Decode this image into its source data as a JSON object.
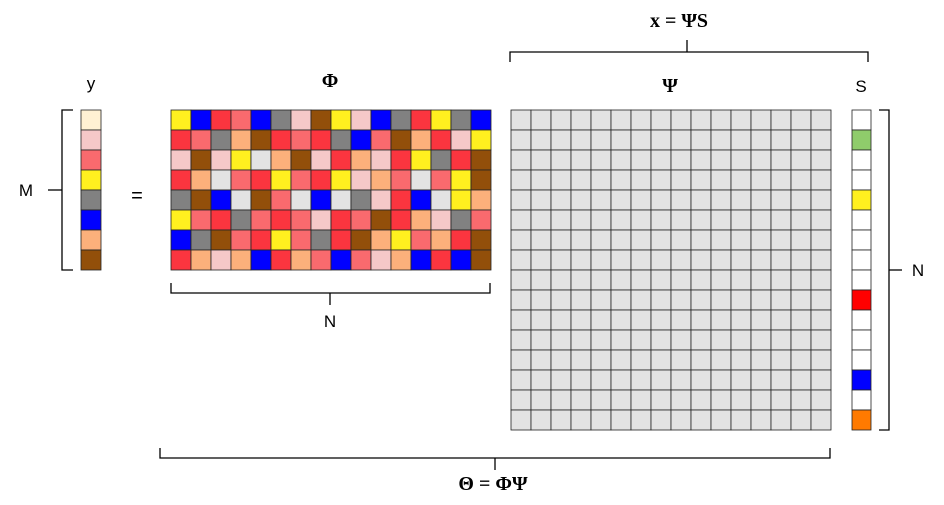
{
  "labels": {
    "y": "y",
    "phi": "Φ",
    "psi": "Ψ",
    "s": "S",
    "m": "M",
    "equals": "=",
    "n_bottom": "N",
    "n_right": "N",
    "x_eq": "x = ΨS",
    "theta_eq": "Θ = ΦΨ"
  },
  "palette": {
    "Y": "#fff01f",
    "B": "#0000ff",
    "R": "#fb353f",
    "P": "#f96a6e",
    "L": "#f5c8c8",
    "O": "#fcb07b",
    "G": "#818181",
    "D": "#924f0a",
    "W": "#ffffff",
    "E": "#e3e3e3",
    "C": "#fff1d3",
    "g": "#8fcc6b",
    "r": "#ff0000",
    "o": "#ff7a00"
  },
  "matrices": {
    "y_vector": [
      "C",
      "L",
      "P",
      "Y",
      "G",
      "B",
      "O",
      "D"
    ],
    "phi_matrix": [
      [
        "Y",
        "B",
        "R",
        "P",
        "B",
        "G",
        "L",
        "D",
        "Y",
        "L",
        "B",
        "G",
        "R",
        "Y",
        "G",
        "B"
      ],
      [
        "R",
        "P",
        "G",
        "O",
        "D",
        "R",
        "P",
        "R",
        "G",
        "B",
        "P",
        "D",
        "O",
        "R",
        "L",
        "Y"
      ],
      [
        "L",
        "D",
        "L",
        "Y",
        "E",
        "O",
        "D",
        "L",
        "R",
        "O",
        "L",
        "R",
        "Y",
        "G",
        "R",
        "D"
      ],
      [
        "R",
        "O",
        "E",
        "P",
        "R",
        "Y",
        "P",
        "R",
        "Y",
        "L",
        "O",
        "P",
        "E",
        "P",
        "Y",
        "D"
      ],
      [
        "G",
        "D",
        "B",
        "E",
        "D",
        "P",
        "E",
        "B",
        "E",
        "G",
        "L",
        "R",
        "B",
        "E",
        "Y",
        "O"
      ],
      [
        "Y",
        "P",
        "R",
        "G",
        "P",
        "R",
        "P",
        "L",
        "R",
        "P",
        "D",
        "R",
        "O",
        "L",
        "G",
        "P"
      ],
      [
        "B",
        "G",
        "D",
        "P",
        "R",
        "Y",
        "P",
        "G",
        "R",
        "D",
        "O",
        "Y",
        "P",
        "O",
        "R",
        "D"
      ],
      [
        "R",
        "O",
        "L",
        "O",
        "B",
        "R",
        "O",
        "P",
        "B",
        "P",
        "L",
        "O",
        "B",
        "R",
        "B",
        "D"
      ]
    ],
    "psi_size": 16,
    "s_vector": [
      "W",
      "g",
      "W",
      "W",
      "Y",
      "W",
      "W",
      "W",
      "W",
      "r",
      "W",
      "W",
      "W",
      "B",
      "W",
      "o"
    ]
  }
}
